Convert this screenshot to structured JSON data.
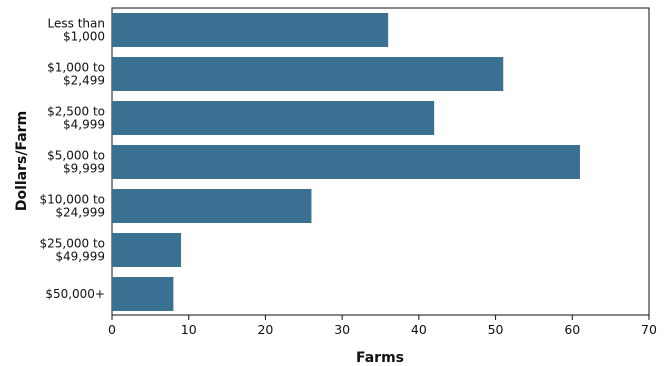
{
  "chart_data": {
    "type": "bar",
    "orientation": "horizontal",
    "categories": [
      [
        "Less than",
        "$1,000"
      ],
      [
        "$1,000 to",
        "$2,499"
      ],
      [
        "$2,500 to",
        "$4,999"
      ],
      [
        "$5,000 to",
        "$9,999"
      ],
      [
        "$10,000 to",
        "$24,999"
      ],
      [
        "$25,000 to",
        "$49,999"
      ],
      [
        "$50,000+"
      ]
    ],
    "values": [
      36,
      51,
      42,
      61,
      26,
      9,
      8
    ],
    "xlabel": "Farms",
    "ylabel": "Dollars/Farm",
    "xlim": [
      0,
      70
    ],
    "xticks": [
      0,
      10,
      20,
      30,
      40,
      50,
      60,
      70
    ],
    "grid": false,
    "bar_color": "#3a7193"
  }
}
